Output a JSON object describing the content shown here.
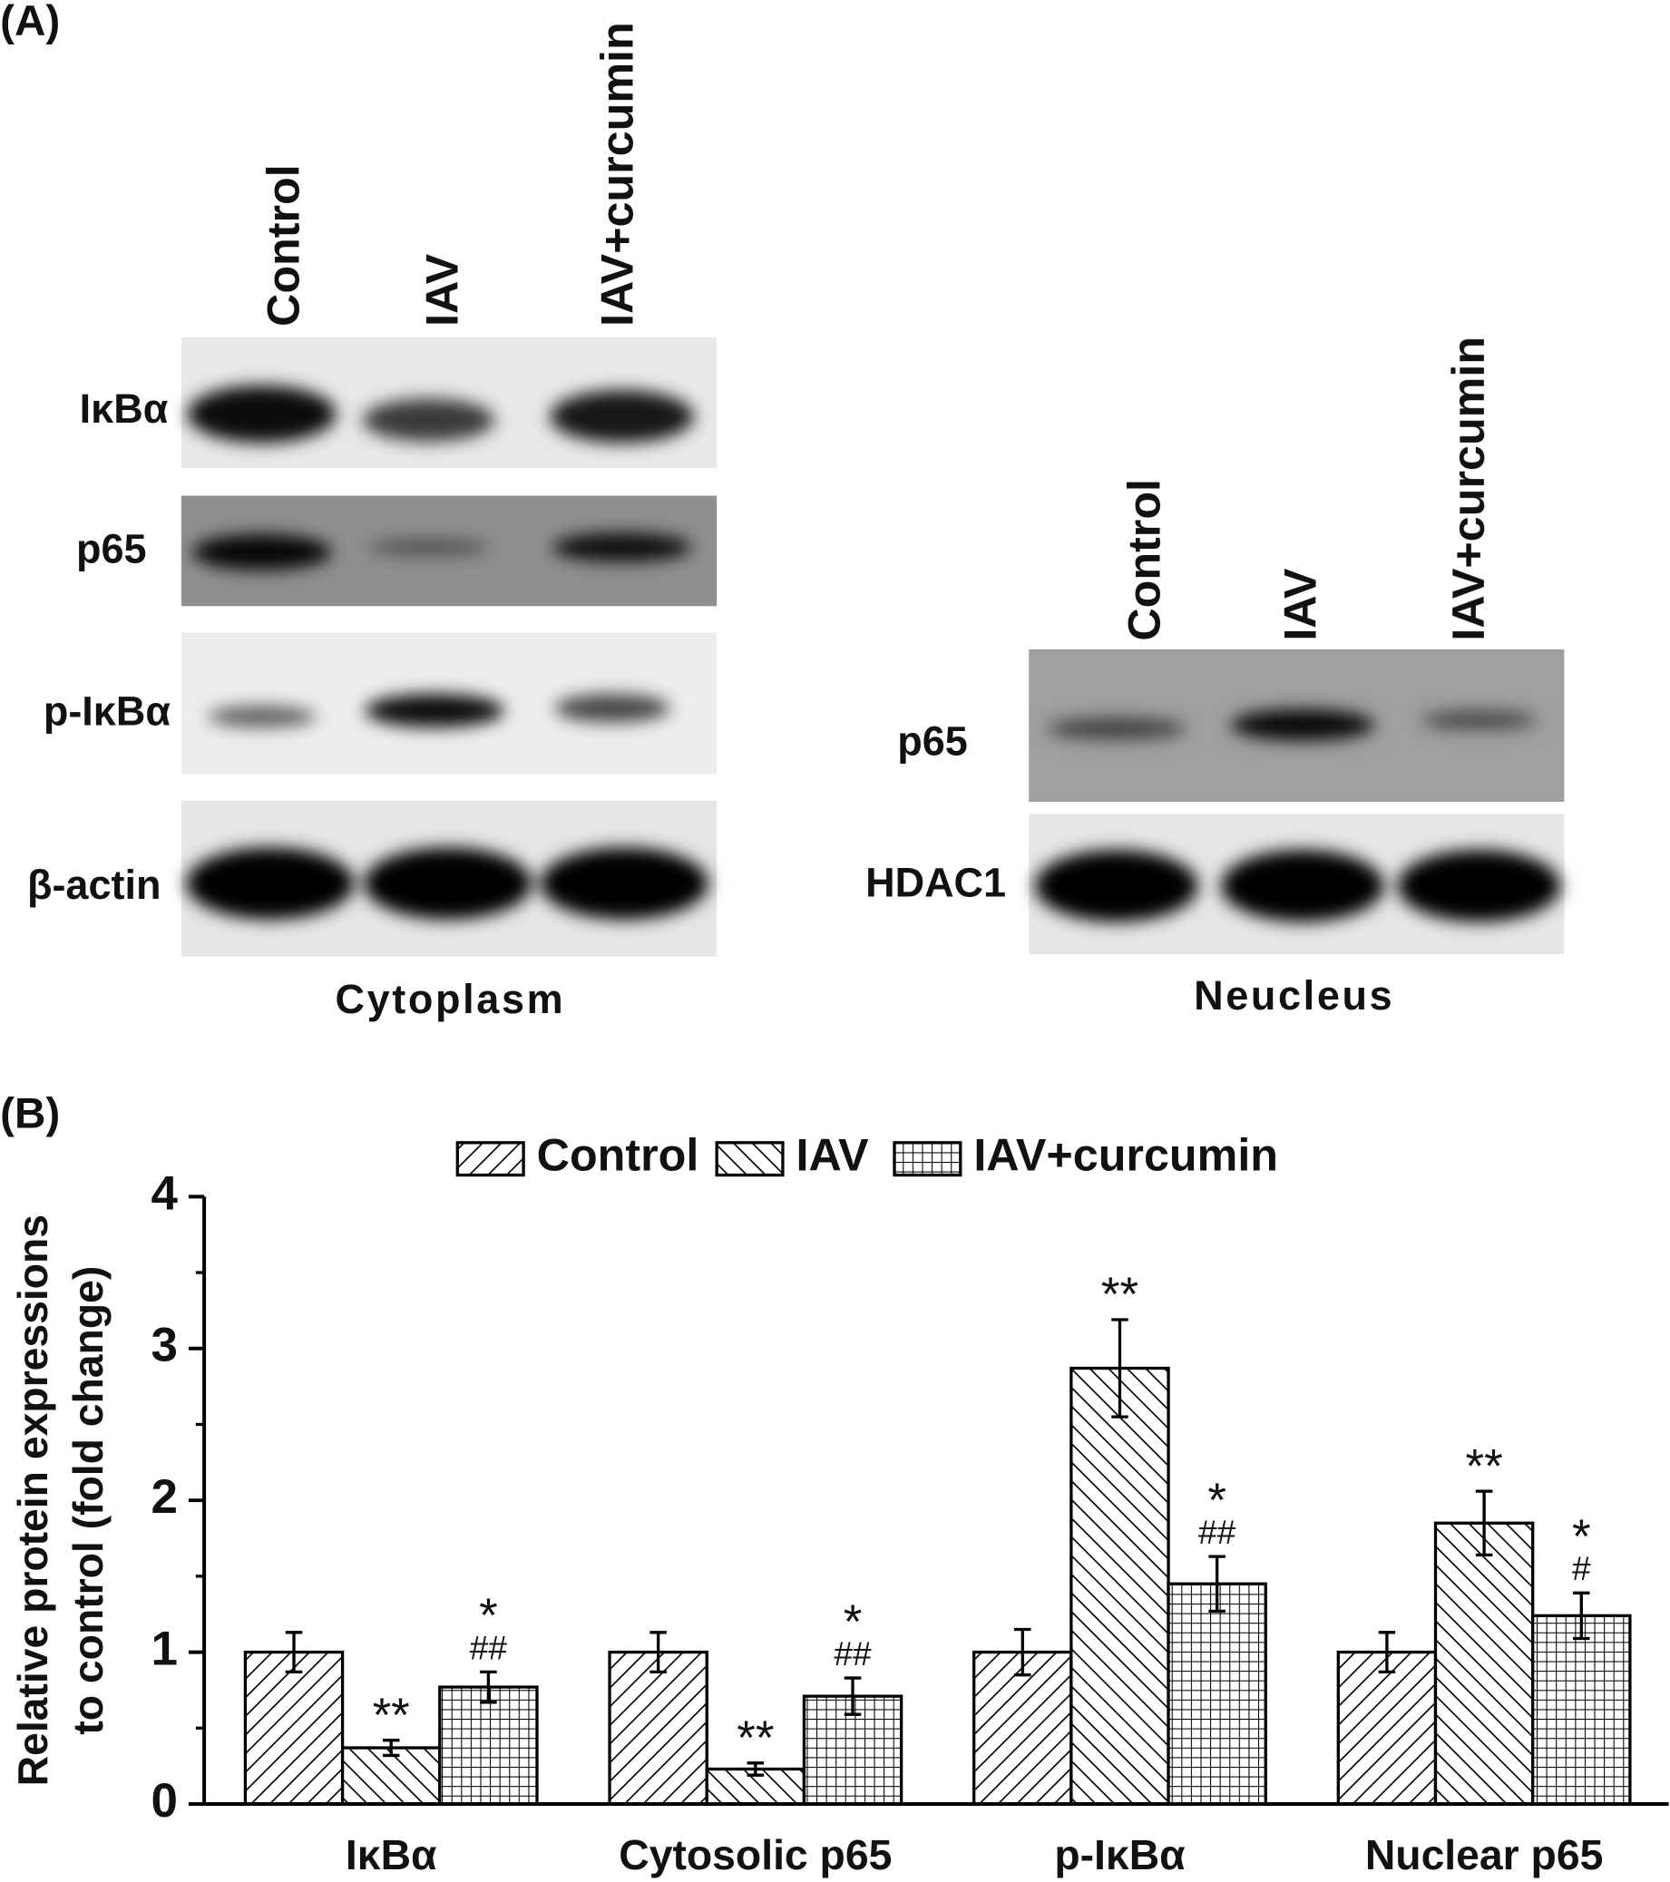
{
  "panel_a": {
    "label": "(A)",
    "cytoplasm": {
      "lanes": [
        "Control",
        "IAV",
        "IAV+curcumin"
      ],
      "rows": [
        "IκBα",
        "p65",
        "p-IκBα",
        "β-actin"
      ],
      "caption": "Cytoplasm"
    },
    "nucleus": {
      "lanes": [
        "Control",
        "IAV",
        "IAV+curcumin"
      ],
      "rows": [
        "p65",
        "HDAC1"
      ],
      "caption": "Neucleus"
    }
  },
  "panel_b": {
    "label": "(B)"
  },
  "chart_data": {
    "type": "bar",
    "ylabel": [
      "Relative protein expressions",
      "to control (fold change)"
    ],
    "categories": [
      "IκBα",
      "Cytosolic p65",
      "p-IκBα",
      "Nuclear p65"
    ],
    "series": [
      {
        "name": "Control",
        "color": "#000000",
        "hatch": "/",
        "values": [
          1,
          1,
          1,
          1
        ],
        "errors": [
          0.13,
          0.13,
          0.15,
          0.13
        ]
      },
      {
        "name": "IAV",
        "color": "#000000",
        "hatch": "\\",
        "values": [
          0.37,
          0.23,
          2.87,
          1.85
        ],
        "errors": [
          0.05,
          0.04,
          0.32,
          0.21
        ],
        "annotations": [
          [
            "**"
          ],
          [
            "**"
          ],
          [
            "**"
          ],
          [
            "**"
          ]
        ]
      },
      {
        "name": "IAV+curcumin",
        "color": "#000000",
        "hatch": "+",
        "values": [
          0.77,
          0.71,
          1.45,
          1.24
        ],
        "errors": [
          0.1,
          0.12,
          0.18,
          0.15
        ],
        "annotations": [
          [
            "*",
            "##"
          ],
          [
            "*",
            "##"
          ],
          [
            "*",
            "##"
          ],
          [
            "*",
            "#"
          ]
        ]
      }
    ],
    "ylim": [
      0,
      4
    ],
    "yticks": [
      0,
      1,
      2,
      3,
      4
    ],
    "minor_yticks": [
      0.5,
      1.5,
      2.5,
      3.5
    ],
    "grid": false,
    "legend": "top"
  }
}
